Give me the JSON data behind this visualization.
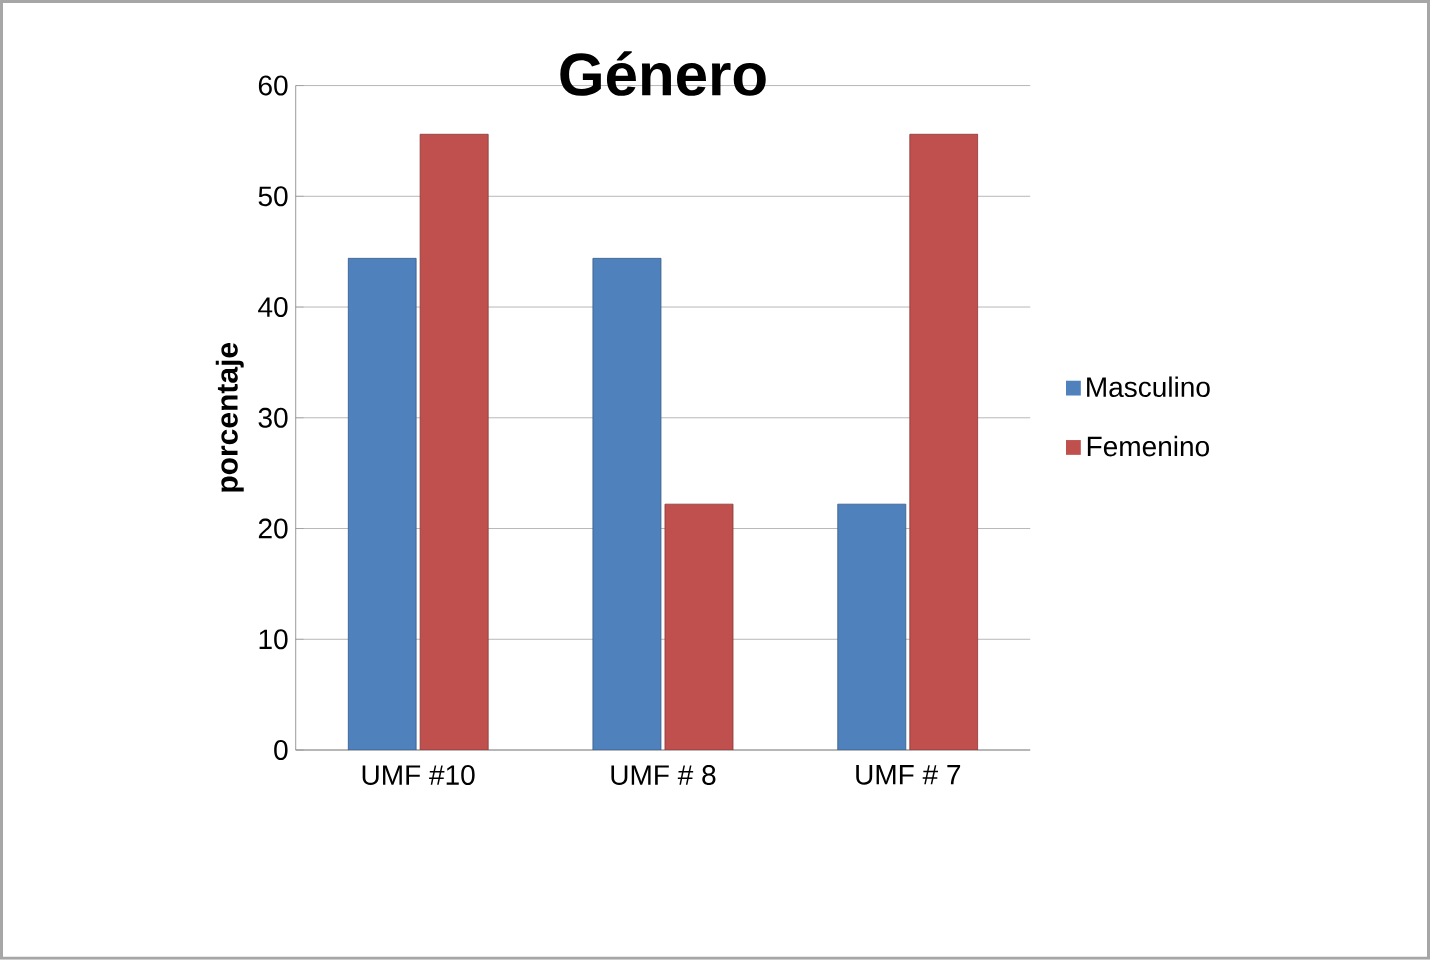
{
  "chart_data": {
    "type": "bar",
    "title": "Género",
    "ylabel": "porcentaje",
    "categories": [
      "UMF #10",
      "UMF # 8",
      "UMF # 7"
    ],
    "series": [
      {
        "name": "Masculino",
        "color": "#4f81bd",
        "values": [
          44.4,
          44.4,
          22.2
        ]
      },
      {
        "name": "Femenino",
        "color": "#c0504d",
        "values": [
          55.6,
          22.2,
          55.6
        ]
      }
    ],
    "ylim": [
      0,
      60
    ],
    "yticks": [
      0,
      10,
      20,
      30,
      40,
      50,
      60
    ],
    "grid": "y",
    "legend": "right"
  }
}
